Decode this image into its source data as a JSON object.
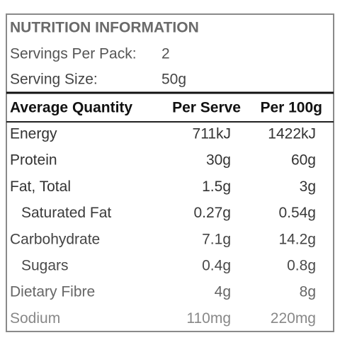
{
  "header": {
    "title": "NUTRITION INFORMATION",
    "servings_label": "Servings Per Pack:",
    "servings_value": "2",
    "serving_size_label": "Serving Size:",
    "serving_size_value": "50g"
  },
  "table": {
    "columns": [
      "Average Quantity",
      "Per Serve",
      "Per 100g"
    ],
    "rows": [
      [
        "Energy",
        "711kJ",
        "1422kJ"
      ],
      [
        "Protein",
        "30g",
        "60g"
      ],
      [
        "Fat, Total",
        "1.5g",
        "3g"
      ],
      [
        "Saturated Fat",
        "0.27g",
        "0.54g"
      ],
      [
        "Carbohydrate",
        "7.1g",
        "14.2g"
      ],
      [
        "Sugars",
        "0.4g",
        "0.8g"
      ],
      [
        "Dietary Fibre",
        "4g",
        "8g"
      ],
      [
        "Sodium",
        "110mg",
        "220mg"
      ]
    ]
  }
}
